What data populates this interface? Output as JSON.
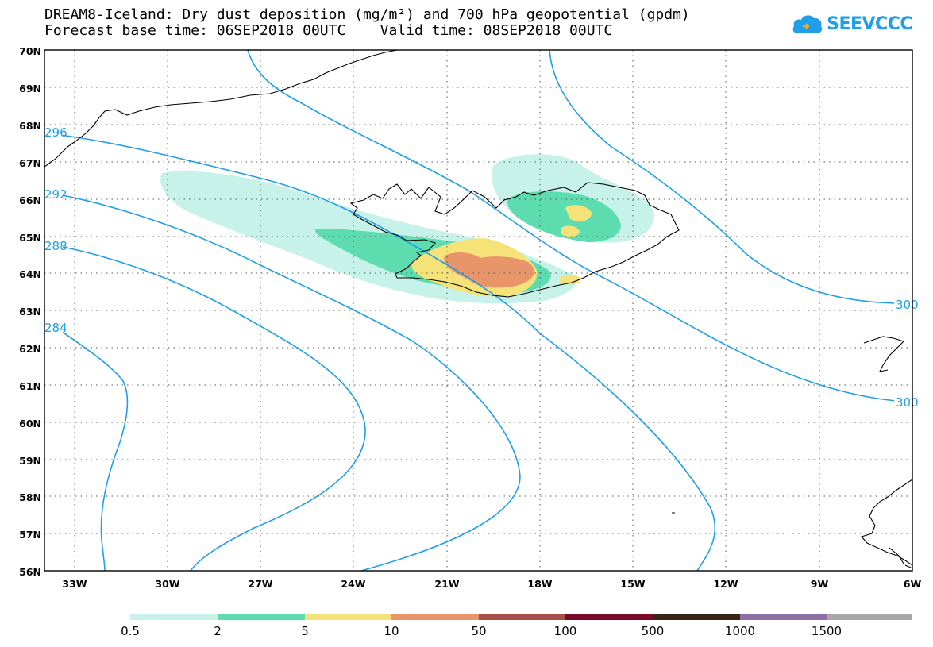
{
  "header": {
    "title_line1": "DREAM8-Iceland: Dry dust deposition (mg/m²) and 700 hPa geopotential (gpdm)",
    "title_line2": "Forecast base time: 06SEP2018 00UTC    Valid time: 08SEP2018 00UTC",
    "logo_text": "SEEVCCC"
  },
  "map": {
    "lat_labels": [
      "70N",
      "69N",
      "68N",
      "67N",
      "66N",
      "65N",
      "64N",
      "63N",
      "62N",
      "61N",
      "60N",
      "59N",
      "58N",
      "57N",
      "56N"
    ],
    "lon_labels": [
      "33W",
      "30W",
      "27W",
      "24W",
      "21W",
      "18W",
      "15W",
      "12W",
      "9W",
      "6W"
    ],
    "contour_labels": [
      "296",
      "292",
      "288",
      "284",
      "300",
      "300"
    ],
    "colors": {
      "contour": "#1e9fe8",
      "coast": "#000000"
    }
  },
  "legend": {
    "levels": [
      "0.5",
      "2",
      "5",
      "10",
      "50",
      "100",
      "500",
      "1000",
      "1500"
    ],
    "colors": [
      "#c6f2ea",
      "#5ddcb0",
      "#f5e37a",
      "#e8956a",
      "#a85047",
      "#7a0a2a",
      "#3a2418",
      "#8e6ea3",
      "#a8a8a8"
    ]
  }
}
